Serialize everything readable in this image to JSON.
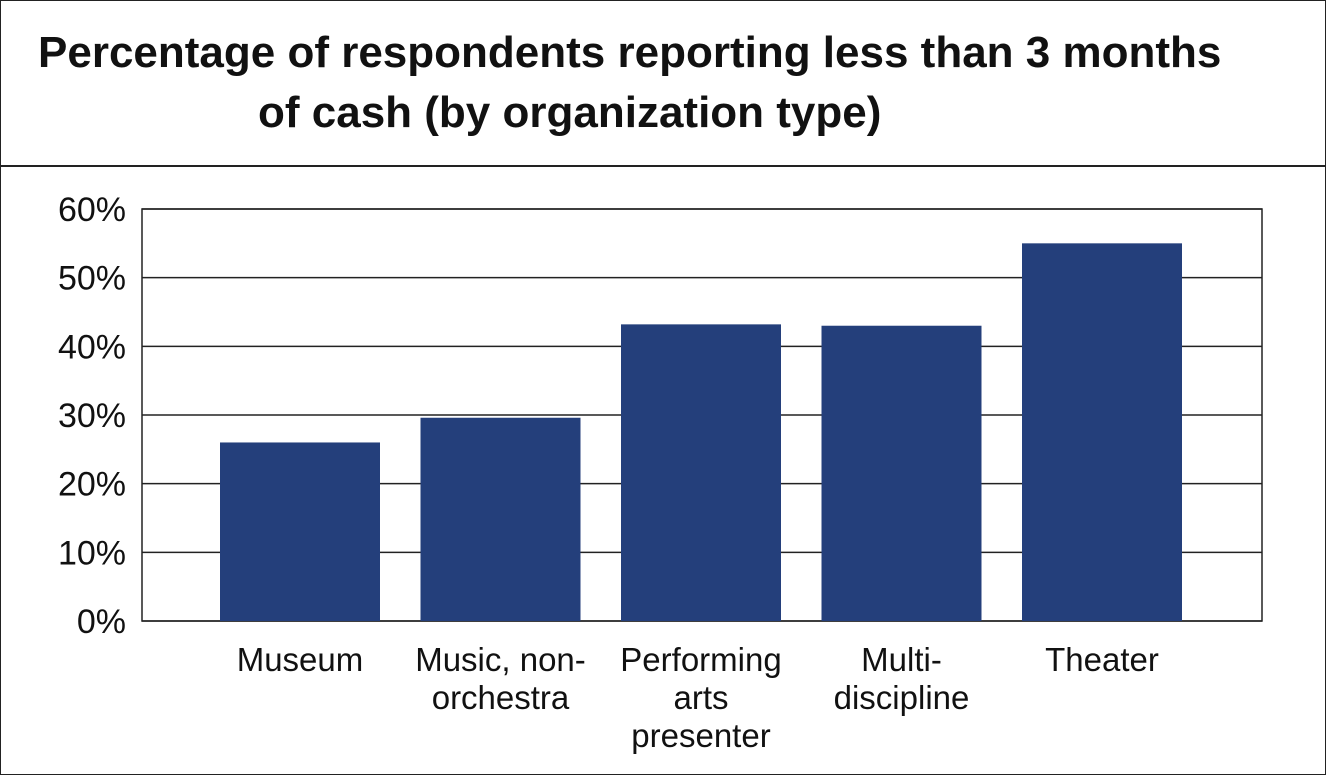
{
  "chart_data": {
    "type": "bar",
    "title": [
      "Percentage of respondents reporting less than 3 months",
      "of cash (by organization type)"
    ],
    "categories": [
      [
        "Museum"
      ],
      [
        "Music, non-",
        "orchestra"
      ],
      [
        "Performing",
        "arts",
        "presenter"
      ],
      [
        "Multi-",
        "discipline"
      ],
      [
        "Theater"
      ]
    ],
    "values": [
      26,
      29.6,
      43.2,
      43.0,
      55.0
    ],
    "ylim": [
      0,
      60
    ],
    "yticks": [
      0,
      10,
      20,
      30,
      40,
      50,
      60
    ],
    "ytick_labels": [
      "0%",
      "10%",
      "20%",
      "30%",
      "40%",
      "50%",
      "60%"
    ],
    "xlabel": "",
    "ylabel": "",
    "grid": true,
    "bar_color": "#243f7b"
  }
}
